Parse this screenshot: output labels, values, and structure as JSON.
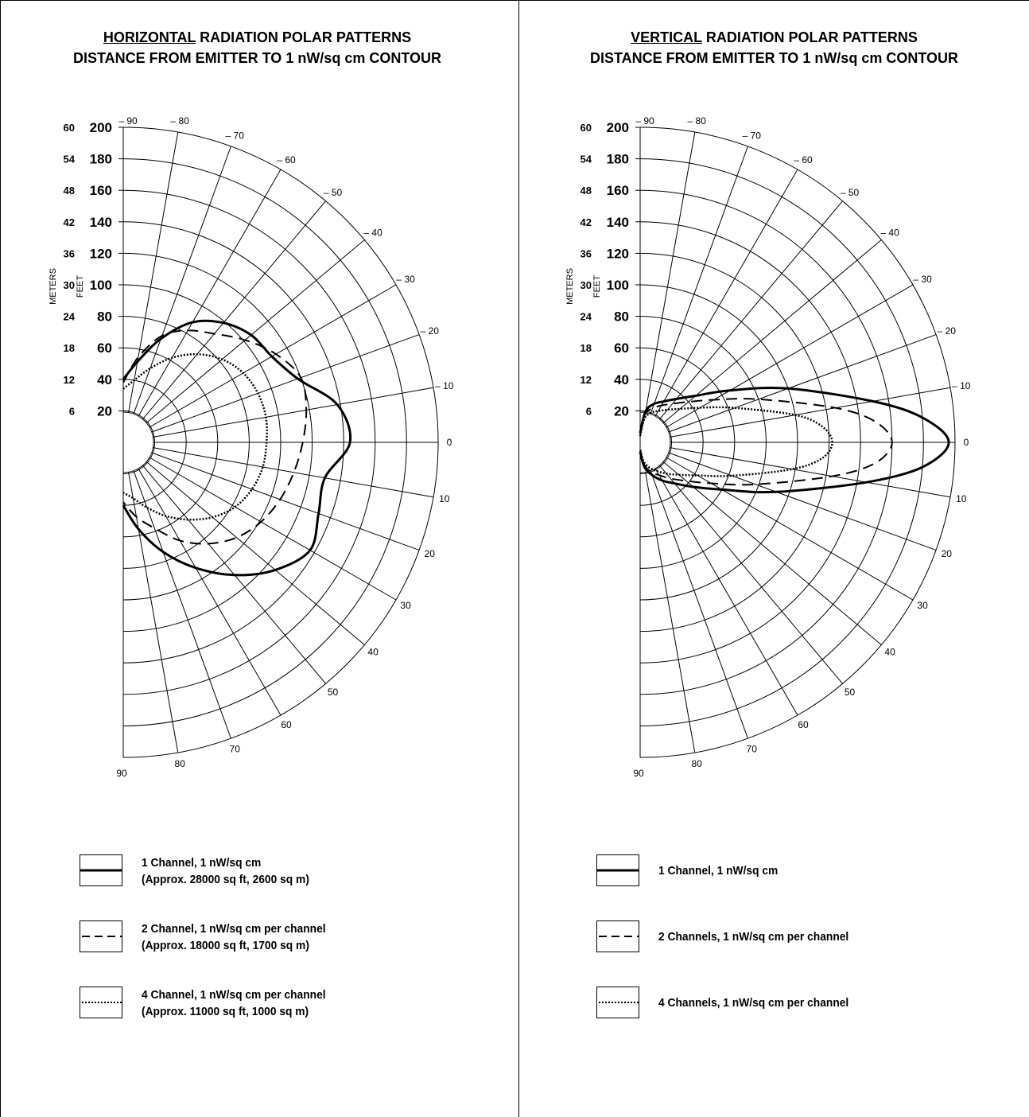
{
  "chart_data": [
    {
      "type": "polar",
      "title_underlined": "HORIZONTAL",
      "title_rest": " RADIATION POLAR PATTERNS",
      "subtitle": "DISTANCE FROM EMITTER TO 1 nW/sq cm CONTOUR",
      "radial_axis_feet_label": "FEET",
      "radial_axis_meters_label": "METERS",
      "radial_ticks_feet": [
        "20",
        "40",
        "60",
        "80",
        "100",
        "120",
        "140",
        "160",
        "180",
        "200"
      ],
      "radial_ticks_meters": [
        "6",
        "12",
        "18",
        "24",
        "30",
        "36",
        "42",
        "48",
        "54",
        "60"
      ],
      "rlim_feet": [
        0,
        200
      ],
      "angle_labels": [
        "– 90",
        "– 80",
        "– 70",
        "– 60",
        "– 50",
        "– 40",
        "– 30",
        "– 20",
        "– 10",
        "0",
        "10",
        "20",
        "30",
        "40",
        "50",
        "60",
        "70",
        "80",
        "90"
      ],
      "theta_range_deg": [
        -90,
        90
      ],
      "grid": true,
      "series": [
        {
          "style": "solid",
          "angles": [
            -90,
            -80,
            -70,
            -60,
            -50,
            -40,
            -30,
            -20,
            -10,
            0,
            10,
            20,
            30,
            40,
            50,
            60,
            70,
            80,
            90
          ],
          "feet": [
            40,
            52,
            70,
            88,
            99,
            106,
            109,
            118,
            138,
            144,
            130,
            132,
            137,
            126,
            110,
            92,
            74,
            56,
            40
          ]
        },
        {
          "style": "dashed",
          "angles": [
            -90,
            -80,
            -70,
            -60,
            -50,
            -40,
            -30,
            -20,
            -10,
            0,
            10,
            20,
            30,
            40,
            50,
            60,
            70,
            80,
            90
          ],
          "feet": [
            38,
            55,
            72,
            82,
            90,
            101,
            112,
            120,
            118,
            114,
            110,
            106,
            101,
            94,
            84,
            72,
            58,
            48,
            38
          ]
        },
        {
          "style": "dotted",
          "angles": [
            -90,
            -80,
            -70,
            -60,
            -50,
            -40,
            -30,
            -20,
            -10,
            0,
            10,
            20,
            30,
            40,
            50,
            60,
            70,
            80,
            90
          ],
          "feet": [
            34,
            40,
            50,
            62,
            73,
            82,
            88,
            91,
            92,
            91,
            90,
            87,
            82,
            74,
            64,
            54,
            44,
            36,
            32
          ]
        }
      ],
      "legend": [
        {
          "style": "solid",
          "line1": "1 Channel, 1 nW/sq cm",
          "line2": "(Approx. 28000 sq ft, 2600 sq m)"
        },
        {
          "style": "dashed",
          "line1": "2 Channel, 1 nW/sq cm per channel",
          "line2": "(Approx. 18000 sq ft, 1700 sq m)"
        },
        {
          "style": "dotted",
          "line1": "4 Channel, 1 nW/sq cm per channel",
          "line2": "(Approx. 11000 sq ft, 1000 sq m)"
        }
      ]
    },
    {
      "type": "polar",
      "title_underlined": "VERTICAL",
      "title_rest": " RADIATION POLAR PATTERNS",
      "subtitle": "DISTANCE FROM EMITTER TO 1 nW/sq cm CONTOUR",
      "radial_axis_feet_label": "FEET",
      "radial_axis_meters_label": "METERS",
      "radial_ticks_feet": [
        "20",
        "40",
        "60",
        "80",
        "100",
        "120",
        "140",
        "160",
        "180",
        "200"
      ],
      "radial_ticks_meters": [
        "6",
        "12",
        "18",
        "24",
        "30",
        "36",
        "42",
        "48",
        "54",
        "60"
      ],
      "rlim_feet": [
        0,
        200
      ],
      "angle_labels": [
        "– 90",
        "– 80",
        "– 70",
        "– 60",
        "– 50",
        "– 40",
        "– 30",
        "– 20",
        "– 10",
        "0",
        "10",
        "20",
        "30",
        "40",
        "50",
        "60",
        "70",
        "80",
        "90"
      ],
      "theta_range_deg": [
        -90,
        90
      ],
      "grid": true,
      "series": [
        {
          "style": "solid",
          "angles": [
            -90,
            -80,
            -70,
            -60,
            -50,
            -40,
            -30,
            -20,
            -10,
            -5,
            0,
            5,
            10,
            20,
            30,
            40,
            50,
            60,
            70,
            80,
            90
          ],
          "feet": [
            6,
            20,
            26,
            30,
            36,
            46,
            66,
            100,
            150,
            180,
            196,
            180,
            146,
            92,
            60,
            44,
            34,
            28,
            22,
            16,
            6
          ]
        },
        {
          "style": "dashed",
          "angles": [
            -90,
            -80,
            -70,
            -60,
            -50,
            -40,
            -30,
            -20,
            -10,
            -5,
            0,
            5,
            10,
            20,
            30,
            40,
            50,
            60,
            70,
            80,
            90
          ],
          "feet": [
            5,
            18,
            23,
            27,
            32,
            40,
            54,
            80,
            126,
            150,
            160,
            150,
            124,
            78,
            52,
            38,
            30,
            24,
            20,
            14,
            5
          ]
        },
        {
          "style": "dotted",
          "angles": [
            -90,
            -80,
            -70,
            -60,
            -50,
            -40,
            -30,
            -20,
            -10,
            -5,
            0,
            5,
            10,
            20,
            30,
            40,
            50,
            60,
            70,
            80,
            90
          ],
          "feet": [
            4,
            15,
            20,
            23,
            27,
            33,
            44,
            64,
            100,
            116,
            122,
            116,
            98,
            62,
            42,
            32,
            26,
            21,
            17,
            12,
            4
          ]
        }
      ],
      "legend": [
        {
          "style": "solid",
          "line1": "1 Channel, 1 nW/sq cm"
        },
        {
          "style": "dashed",
          "line1": "2 Channels, 1 nW/sq cm per channel"
        },
        {
          "style": "dotted",
          "line1": "4 Channels, 1 nW/sq cm per channel"
        }
      ]
    }
  ],
  "colors": {
    "ink": "#000000",
    "grid": "#000000",
    "background": "#ffffff"
  }
}
